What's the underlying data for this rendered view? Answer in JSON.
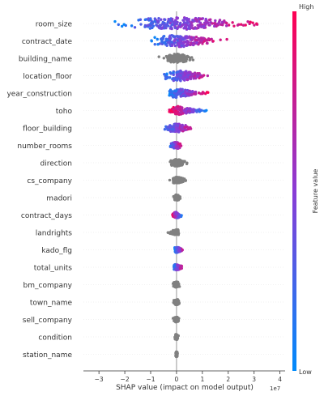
{
  "chart_data": {
    "type": "scatter",
    "subtype": "shap-beeswarm",
    "title": "",
    "xlabel": "SHAP value (impact on model output)",
    "ylabel": "",
    "x_scale_label": "1e7",
    "xlim": [
      -3.6,
      4.2
    ],
    "x_ticks": [
      -3,
      -2,
      -1,
      0,
      1,
      2,
      3,
      4
    ],
    "x_tick_labels": [
      "−3",
      "−2",
      "−1",
      "0",
      "1",
      "2",
      "3",
      "4"
    ],
    "grid": false,
    "colorbar": {
      "label": "Feature value",
      "high_label": "High",
      "low_label": "Low",
      "low_color": "#008bfb",
      "high_color": "#ff0052",
      "nan_color": "#808080"
    },
    "features": [
      {
        "name": "room_size",
        "min": -3.0,
        "max": 3.9,
        "low_side": "negative",
        "mode": "color"
      },
      {
        "name": "contract_date",
        "min": -1.4,
        "max": 2.1,
        "low_side": "negative",
        "mode": "color"
      },
      {
        "name": "building_name",
        "min": -0.8,
        "max": 0.9,
        "low_side": "mixed",
        "mode": "gray"
      },
      {
        "name": "location_floor",
        "min": -0.8,
        "max": 1.7,
        "low_side": "negative",
        "mode": "color"
      },
      {
        "name": "year_construction",
        "min": -0.4,
        "max": 1.3,
        "low_side": "negative",
        "mode": "color"
      },
      {
        "name": "toho",
        "min": -0.3,
        "max": 1.3,
        "low_side": "positive",
        "mode": "color"
      },
      {
        "name": "floor_building",
        "min": -0.7,
        "max": 0.8,
        "low_side": "negative",
        "mode": "color"
      },
      {
        "name": "number_rooms",
        "min": -0.4,
        "max": 0.3,
        "low_side": "negative",
        "mode": "color"
      },
      {
        "name": "direction",
        "min": -0.4,
        "max": 0.5,
        "low_side": "mixed",
        "mode": "gray"
      },
      {
        "name": "cs_company",
        "min": -0.3,
        "max": 0.5,
        "low_side": "mixed",
        "mode": "gray"
      },
      {
        "name": "madori",
        "min": -0.2,
        "max": 0.2,
        "low_side": "mixed",
        "mode": "gray"
      },
      {
        "name": "contract_days",
        "min": -0.25,
        "max": 0.25,
        "low_side": "positive",
        "mode": "color"
      },
      {
        "name": "landrights",
        "min": -0.4,
        "max": 0.1,
        "low_side": "mixed",
        "mode": "gray"
      },
      {
        "name": "kado_flg",
        "min": -0.1,
        "max": 0.3,
        "low_side": "negative",
        "mode": "color"
      },
      {
        "name": "total_units",
        "min": -0.2,
        "max": 0.3,
        "low_side": "negative",
        "mode": "color"
      },
      {
        "name": "bm_company",
        "min": -0.2,
        "max": 0.2,
        "low_side": "mixed",
        "mode": "gray"
      },
      {
        "name": "town_name",
        "min": -0.15,
        "max": 0.15,
        "low_side": "mixed",
        "mode": "gray"
      },
      {
        "name": "sell_company",
        "min": -0.15,
        "max": 0.15,
        "low_side": "mixed",
        "mode": "gray"
      },
      {
        "name": "condition",
        "min": -0.1,
        "max": 0.1,
        "low_side": "mixed",
        "mode": "gray"
      },
      {
        "name": "station_name",
        "min": -0.05,
        "max": 0.05,
        "low_side": "mixed",
        "mode": "gray"
      }
    ]
  }
}
